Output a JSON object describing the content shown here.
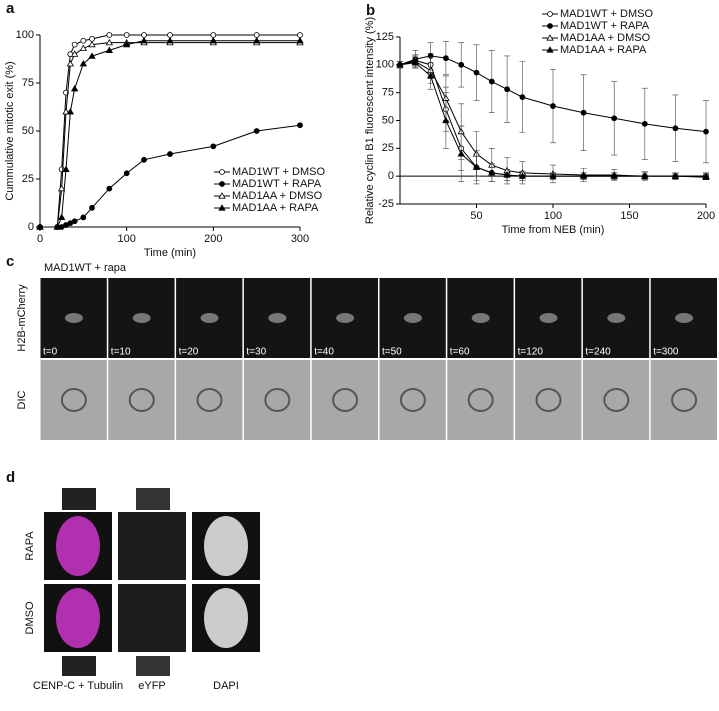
{
  "chart_data": [
    {
      "type": "line",
      "panel": "a",
      "x_label": "Time (min)",
      "y_label": "Cummulative mitotic exit (%)",
      "x": [
        0,
        20,
        25,
        30,
        35,
        40,
        50,
        60,
        80,
        100,
        120,
        150,
        200,
        250,
        300
      ],
      "xlim": [
        0,
        300
      ],
      "xticks": [
        0,
        100,
        200,
        300
      ],
      "ylim": [
        0,
        100
      ],
      "yticks": [
        0,
        25,
        50,
        75,
        100
      ],
      "legend": "lower right",
      "series": [
        {
          "name": "MAD1WT + DMSO",
          "color": "#000000",
          "marker": "circle-open",
          "values": [
            0,
            0,
            30,
            70,
            90,
            95,
            97,
            98,
            100,
            100,
            100,
            100,
            100,
            100,
            100
          ]
        },
        {
          "name": "MAD1WT + RAPA",
          "color": "#000000",
          "marker": "circle-filled",
          "values": [
            0,
            0,
            0,
            1,
            2,
            3,
            5,
            10,
            20,
            28,
            35,
            38,
            42,
            50,
            53
          ]
        },
        {
          "name": "MAD1AA + DMSO",
          "color": "#000000",
          "marker": "triangle-open",
          "values": [
            0,
            0,
            20,
            60,
            85,
            90,
            93,
            95,
            96,
            96,
            96,
            96,
            96,
            96,
            96
          ]
        },
        {
          "name": "MAD1AA + RAPA",
          "color": "#000000",
          "marker": "triangle-filled",
          "values": [
            0,
            0,
            5,
            30,
            60,
            72,
            85,
            89,
            92,
            95,
            97,
            97,
            97,
            97,
            97
          ]
        }
      ]
    },
    {
      "type": "line",
      "panel": "b",
      "x_label": "Time from NEB (min)",
      "y_label": "Relative cyclin B1 fluorescent intensity (%)",
      "x": [
        0,
        10,
        20,
        30,
        40,
        50,
        60,
        70,
        80,
        100,
        120,
        140,
        160,
        180,
        200
      ],
      "xlim": [
        0,
        200
      ],
      "xticks": [
        50,
        100,
        150,
        200
      ],
      "ylim": [
        -25,
        125
      ],
      "yticks": [
        -25,
        0,
        25,
        50,
        75,
        100,
        125
      ],
      "legend": "upper right",
      "zero_line": true,
      "series": [
        {
          "name": "MAD1WT + DMSO",
          "color": "#000000",
          "marker": "circle-open",
          "values": [
            100,
            104,
            100,
            60,
            25,
            8,
            3,
            1,
            0,
            0,
            0,
            0,
            0,
            0,
            0
          ],
          "errors": [
            3,
            5,
            10,
            20,
            20,
            12,
            8,
            5,
            4,
            3,
            3,
            3,
            3,
            3,
            3
          ]
        },
        {
          "name": "MAD1WT + RAPA",
          "color": "#000000",
          "marker": "circle-filled",
          "values": [
            100,
            105,
            108,
            106,
            100,
            93,
            85,
            78,
            71,
            63,
            57,
            52,
            47,
            43,
            40
          ],
          "errors": [
            3,
            8,
            12,
            15,
            20,
            25,
            28,
            30,
            32,
            33,
            34,
            33,
            32,
            30,
            28
          ]
        },
        {
          "name": "MAD1AA + DMSO",
          "color": "#000000",
          "marker": "triangle-open",
          "values": [
            100,
            103,
            95,
            70,
            40,
            20,
            10,
            5,
            3,
            2,
            1,
            1,
            0,
            0,
            0
          ],
          "errors": [
            3,
            5,
            12,
            20,
            25,
            20,
            15,
            12,
            10,
            8,
            6,
            5,
            4,
            3,
            2
          ]
        },
        {
          "name": "MAD1AA + RAPA",
          "color": "#000000",
          "marker": "triangle-filled",
          "values": [
            100,
            102,
            90,
            50,
            20,
            8,
            3,
            1,
            0,
            0,
            0,
            0,
            0,
            0,
            -1
          ],
          "errors": [
            3,
            5,
            12,
            25,
            25,
            15,
            8,
            5,
            4,
            3,
            3,
            3,
            3,
            2,
            2
          ]
        }
      ]
    }
  ],
  "panel_c": {
    "label": "c",
    "condition": "MAD1WT + rapa",
    "rows": [
      "H2B-mCherry",
      "DIC"
    ],
    "times": [
      "t=0",
      "t=10",
      "t=20",
      "t=30",
      "t=40",
      "t=50",
      "t=60",
      "t=120",
      "t=240",
      "t=300"
    ]
  },
  "panel_d": {
    "label": "d",
    "rows": [
      "RAPA",
      "DMSO"
    ],
    "columns": [
      "CENP-C + Tubulin",
      "eYFP",
      "DAPI"
    ]
  }
}
